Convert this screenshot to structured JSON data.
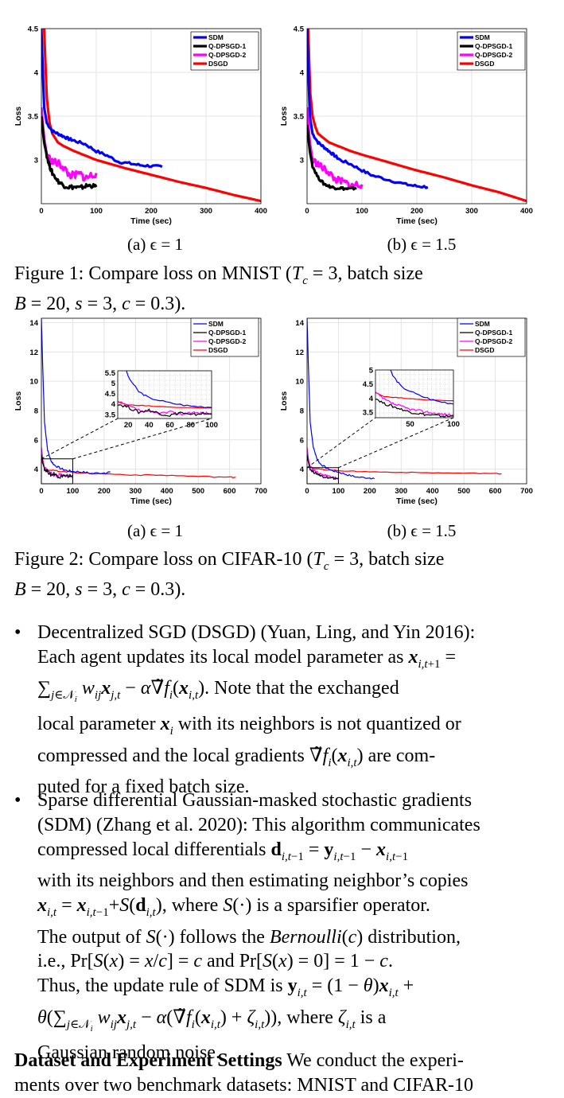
{
  "figure1": {
    "caption": "Figure 1: Compare loss on MNIST (T_c = 3, batch size B = 20, s = 3, c = 0.3).",
    "caption_line1": "Figure 1: Compare loss on MNIST (",
    "caption_line1_end": ", batch size",
    "caption_line2_end": ").",
    "subcaptions": [
      "(a) ϵ = 1",
      "(b) ϵ = 1.5"
    ]
  },
  "figure2": {
    "caption": "Figure 2: Compare loss on CIFAR-10 (T_c = 3, batch size B = 20, s = 3, c = 0.3).",
    "caption_line1": "Figure 2: Compare loss on CIFAR-10 (",
    "caption_line1_end": ", batch size",
    "caption_line2_end": ").",
    "subcaptions": [
      "(a) ϵ = 1",
      "(b) ϵ = 1.5"
    ]
  },
  "chart_data": [
    {
      "type": "line",
      "xlabel": "Time (sec)",
      "ylabel": "Loss",
      "xlim": [
        0,
        400
      ],
      "ylim": [
        2.5,
        4.5
      ],
      "xticks": [
        0,
        100,
        200,
        300,
        400
      ],
      "yticks": [
        3,
        3.5,
        4,
        4.5
      ],
      "ytick_labels": [
        "3",
        "3.5",
        "4",
        "4.5"
      ],
      "grid": true,
      "legend": "top-right",
      "series": [
        {
          "name": "SDM",
          "color": "#0000ff",
          "x": [
            0,
            5,
            10,
            20,
            30,
            40,
            50,
            60,
            80,
            100,
            120,
            140,
            160,
            180,
            200,
            220
          ],
          "y": [
            4.5,
            3.6,
            3.42,
            3.33,
            3.3,
            3.27,
            3.24,
            3.22,
            3.18,
            3.1,
            3.05,
            2.98,
            2.96,
            2.94,
            2.93,
            2.92
          ]
        },
        {
          "name": "Q-DPSGD-1",
          "color": "#000000",
          "x": [
            0,
            5,
            10,
            15,
            20,
            30,
            40,
            50,
            60,
            70,
            80,
            90,
            100
          ],
          "y": [
            3.5,
            3.2,
            3.05,
            2.93,
            2.85,
            2.76,
            2.71,
            2.69,
            2.69,
            2.68,
            2.7,
            2.71,
            2.69
          ]
        },
        {
          "name": "Q-DPSGD-2",
          "color": "#ff00ff",
          "x": [
            0,
            5,
            10,
            20,
            30,
            40,
            50,
            60,
            70,
            80,
            90,
            100
          ],
          "y": [
            3.6,
            3.25,
            3.05,
            2.98,
            2.96,
            2.92,
            2.83,
            2.82,
            2.84,
            2.79,
            2.82,
            2.85
          ]
        },
        {
          "name": "DSGD",
          "color": "#ff0000",
          "x": [
            5,
            8,
            10,
            15,
            20,
            30,
            40,
            60,
            80,
            100,
            150,
            200,
            250,
            300,
            350,
            400
          ],
          "y": [
            4.5,
            4.0,
            3.7,
            3.42,
            3.3,
            3.2,
            3.16,
            3.1,
            3.05,
            3.0,
            2.91,
            2.83,
            2.75,
            2.68,
            2.6,
            2.53
          ]
        }
      ]
    },
    {
      "type": "line",
      "xlabel": "Time (sec)",
      "ylabel": "Loss",
      "xlim": [
        0,
        400
      ],
      "ylim": [
        2.5,
        4.5
      ],
      "xticks": [
        0,
        100,
        200,
        300,
        400
      ],
      "yticks": [
        3,
        3.5,
        4,
        4.5
      ],
      "ytick_labels": [
        "3",
        "3.5",
        "4",
        "4.5"
      ],
      "grid": true,
      "legend": "top-right",
      "series": [
        {
          "name": "SDM",
          "color": "#0000ff",
          "x": [
            0,
            5,
            10,
            20,
            30,
            40,
            50,
            60,
            80,
            100,
            120,
            150,
            180,
            200,
            220
          ],
          "y": [
            4.5,
            3.5,
            3.3,
            3.2,
            3.15,
            3.1,
            3.05,
            3.0,
            2.95,
            2.88,
            2.82,
            2.77,
            2.72,
            2.7,
            2.69
          ]
        },
        {
          "name": "Q-DPSGD-1",
          "color": "#000000",
          "x": [
            0,
            5,
            10,
            20,
            30,
            40,
            50,
            60,
            70,
            80,
            90
          ],
          "y": [
            3.4,
            3.1,
            2.93,
            2.8,
            2.73,
            2.7,
            2.68,
            2.68,
            2.67,
            2.67,
            2.68
          ]
        },
        {
          "name": "Q-DPSGD-2",
          "color": "#ff00ff",
          "x": [
            0,
            5,
            10,
            20,
            30,
            40,
            50,
            60,
            70,
            80,
            90,
            100
          ],
          "y": [
            3.6,
            3.2,
            3.0,
            2.95,
            2.9,
            2.86,
            2.78,
            2.76,
            2.74,
            2.7,
            2.72,
            2.72
          ]
        },
        {
          "name": "DSGD",
          "color": "#ff0000",
          "x": [
            2,
            4,
            6,
            10,
            15,
            20,
            30,
            40,
            60,
            80,
            100,
            150,
            200,
            250,
            300,
            350,
            400
          ],
          "y": [
            4.5,
            4.1,
            3.75,
            3.5,
            3.38,
            3.3,
            3.25,
            3.2,
            3.15,
            3.1,
            3.06,
            2.97,
            2.88,
            2.8,
            2.71,
            2.63,
            2.53
          ]
        }
      ]
    },
    {
      "type": "line",
      "xlabel": "Time (sec)",
      "ylabel": "Loss",
      "xlim": [
        0,
        700
      ],
      "ylim": [
        3,
        14.3
      ],
      "xticks": [
        0,
        100,
        200,
        300,
        400,
        500,
        600,
        700
      ],
      "yticks": [
        4,
        6,
        8,
        10,
        12,
        14
      ],
      "ytick_labels": [
        "4",
        "6",
        "8",
        "10",
        "12",
        "14"
      ],
      "grid": true,
      "legend": "top-right",
      "series": [
        {
          "name": "SDM",
          "color": "#0000ff",
          "x": [
            0,
            5,
            10,
            20,
            30,
            40,
            60,
            80,
            100,
            130,
            160,
            200,
            220
          ],
          "y": [
            14.3,
            10.5,
            7.2,
            5.3,
            4.6,
            4.3,
            4.05,
            3.9,
            3.85,
            3.8,
            3.7,
            3.75,
            3.8
          ]
        },
        {
          "name": "Q-DPSGD-1",
          "color": "#000000",
          "x": [
            0,
            5,
            10,
            20,
            30,
            40,
            50,
            60,
            70,
            80,
            90,
            100
          ],
          "y": [
            5.0,
            4.4,
            4.0,
            3.85,
            3.6,
            3.7,
            3.55,
            3.45,
            3.6,
            3.45,
            3.55,
            3.5
          ]
        },
        {
          "name": "Q-DPSGD-2",
          "color": "#ff00ff",
          "x": [
            0,
            5,
            10,
            20,
            30,
            40,
            50,
            60,
            70,
            80,
            90,
            100
          ],
          "y": [
            5.5,
            4.6,
            4.1,
            3.9,
            3.7,
            3.6,
            3.55,
            3.6,
            3.5,
            3.6,
            3.55,
            3.55
          ]
        },
        {
          "name": "DSGD",
          "color": "#ff0000",
          "x": [
            0,
            10,
            20,
            40,
            60,
            100,
            150,
            200,
            300,
            400,
            500,
            600,
            620
          ],
          "y": [
            4.6,
            4.1,
            3.95,
            3.9,
            3.85,
            3.8,
            3.7,
            3.68,
            3.6,
            3.58,
            3.5,
            3.45,
            3.45
          ]
        }
      ],
      "inset": {
        "xlim": [
          10,
          100
        ],
        "ylim": [
          3.3,
          5.6
        ],
        "xticks": [
          20,
          40,
          60,
          80,
          100
        ],
        "yticks": [
          3.5,
          4,
          4.5,
          5,
          5.5
        ],
        "ytick_labels": [
          "3.5",
          "4",
          "4.5",
          "5",
          "5.5"
        ]
      }
    },
    {
      "type": "line",
      "xlabel": "Time (sec)",
      "ylabel": "Loss",
      "xlim": [
        0,
        700
      ],
      "ylim": [
        3,
        14.3
      ],
      "xticks": [
        0,
        100,
        200,
        300,
        400,
        500,
        600,
        700
      ],
      "yticks": [
        4,
        6,
        8,
        10,
        12,
        14
      ],
      "ytick_labels": [
        "4",
        "6",
        "8",
        "10",
        "12",
        "14"
      ],
      "grid": true,
      "legend": "top-right",
      "series": [
        {
          "name": "SDM",
          "color": "#0000ff",
          "x": [
            0,
            5,
            10,
            20,
            30,
            40,
            60,
            80,
            100,
            130,
            160,
            200,
            215
          ],
          "y": [
            14.3,
            10.5,
            7.2,
            5.5,
            4.8,
            4.4,
            4.1,
            3.9,
            3.8,
            3.6,
            3.45,
            3.4,
            3.35
          ]
        },
        {
          "name": "Q-DPSGD-1",
          "color": "#000000",
          "x": [
            0,
            5,
            10,
            20,
            30,
            40,
            50,
            60,
            70,
            80,
            90,
            100
          ],
          "y": [
            5.0,
            4.4,
            4.0,
            3.8,
            3.7,
            3.6,
            3.5,
            3.45,
            3.4,
            3.38,
            3.35,
            3.35
          ]
        },
        {
          "name": "Q-DPSGD-2",
          "color": "#ff00ff",
          "x": [
            0,
            5,
            10,
            20,
            30,
            40,
            50,
            60,
            70,
            80,
            90,
            100
          ],
          "y": [
            5.5,
            4.6,
            4.2,
            3.95,
            3.8,
            3.7,
            3.6,
            3.55,
            3.5,
            3.45,
            3.42,
            3.4
          ]
        },
        {
          "name": "DSGD",
          "color": "#ff0000",
          "x": [
            0,
            10,
            20,
            40,
            60,
            100,
            150,
            200,
            300,
            400,
            500,
            600,
            620
          ],
          "y": [
            4.7,
            4.2,
            4.05,
            4.0,
            3.95,
            3.9,
            3.85,
            3.82,
            3.78,
            3.75,
            3.72,
            3.7,
            3.68
          ]
        }
      ],
      "inset": {
        "xlim": [
          10,
          100
        ],
        "ylim": [
          3.3,
          5.0
        ],
        "xticks": [
          50,
          100
        ],
        "yticks": [
          3.5,
          4,
          4.5,
          5
        ],
        "ytick_labels": [
          "3.5",
          "4",
          "4.5",
          "5"
        ]
      }
    }
  ],
  "text": {
    "bullet1": {
      "name": "Decentralized SGD (DSGD)",
      "cite": "(Yuan, Ling, and Yin 2016):",
      "line1": "Decentralized SGD (DSGD) (Yuan, Ling, and Yin 2016):",
      "line2a": "Each agent updates its local model parameter as",
      "line3b": ". Note that the exchanged",
      "line4a": "local parameter",
      "line4b": "with its neighbors is not quantized or",
      "line5a": "compressed and the local gradients",
      "line5b": "are com-",
      "line6": "puted for a fixed batch size."
    },
    "bullet2": {
      "line1": "Sparse differential Gaussian-masked stochastic gradients",
      "line2": "(SDM) (Zhang et al. 2020): This algorithm communicates",
      "line3a": "compressed local differentials",
      "line4": "with its neighbors and then estimating neighbor’s copies",
      "line5b": ", where",
      "line5c": "is a sparsifier operator.",
      "line6a": "The output of",
      "line6b": "follows the",
      "line6c": "distribution,",
      "line7a": "i.e.,",
      "line7b": "and",
      "line8a": "Thus, the update rule of SDM is",
      "line9b": ", where",
      "line9c": "is a",
      "line10": "Gaussian random noise."
    },
    "dataset_heading": "Dataset and Experiment Settings",
    "dataset_text": "We conduct the experi-",
    "dataset_text2": "ments over two benchmark datasets: MNIST and CIFAR-10"
  }
}
